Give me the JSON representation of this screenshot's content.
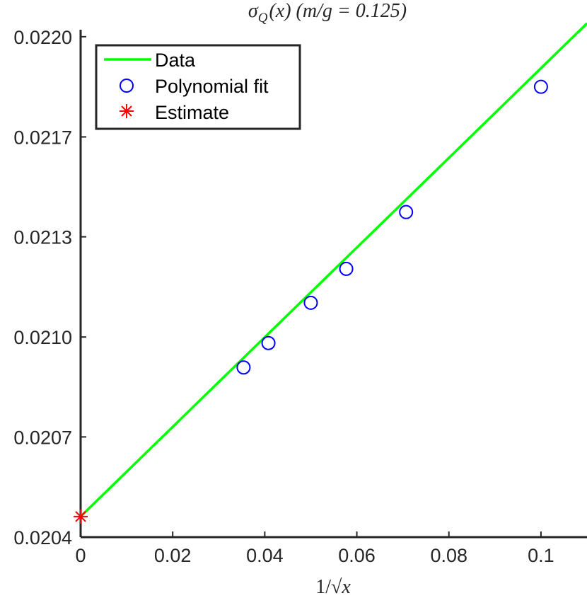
{
  "chart_data": {
    "type": "scatter",
    "title": "σ_Q(x) (m/g = 0.125)",
    "title_parts": {
      "sigma": "σ",
      "sub": "Q",
      "rest": "(x) (m/g = 0.125)"
    },
    "xlabel": "1/√x",
    "xlabel_parts": {
      "num": "1/",
      "sqrt": "√",
      "var": "x"
    },
    "ylabel": "",
    "xlim": [
      0,
      0.11
    ],
    "ylim": [
      0.0204,
      0.022
    ],
    "xticks": [
      0,
      0.02,
      0.04,
      0.06,
      0.08,
      0.1
    ],
    "xtick_labels": [
      "0",
      "0.02",
      "0.04",
      "0.06",
      "0.08",
      "0.1"
    ],
    "yticks": [
      0.0204,
      0.020716,
      0.021031,
      0.021347,
      0.021662,
      0.021978
    ],
    "ytick_labels": [
      "0.0204",
      "0.0207",
      "0.0210",
      "0.0213",
      "0.0217",
      "0.0220"
    ],
    "grid": false,
    "legend_position": "top-left",
    "series": [
      {
        "name": "Data",
        "kind": "line",
        "color": "#00ff00",
        "x": [
          0,
          0.11
        ],
        "y": [
          0.020465,
          0.02202
        ]
      },
      {
        "name": "Polynomial fit",
        "kind": "marker-circle",
        "color": "#0000ff",
        "x": [
          0.0354,
          0.0408,
          0.05,
          0.0577,
          0.0707,
          0.1
        ],
        "y": [
          0.020935,
          0.021012,
          0.021139,
          0.021246,
          0.021425,
          0.02182
        ]
      },
      {
        "name": "Estimate",
        "kind": "marker-asterisk",
        "color": "#ff0000",
        "x": [
          0
        ],
        "y": [
          0.020465
        ]
      }
    ]
  }
}
